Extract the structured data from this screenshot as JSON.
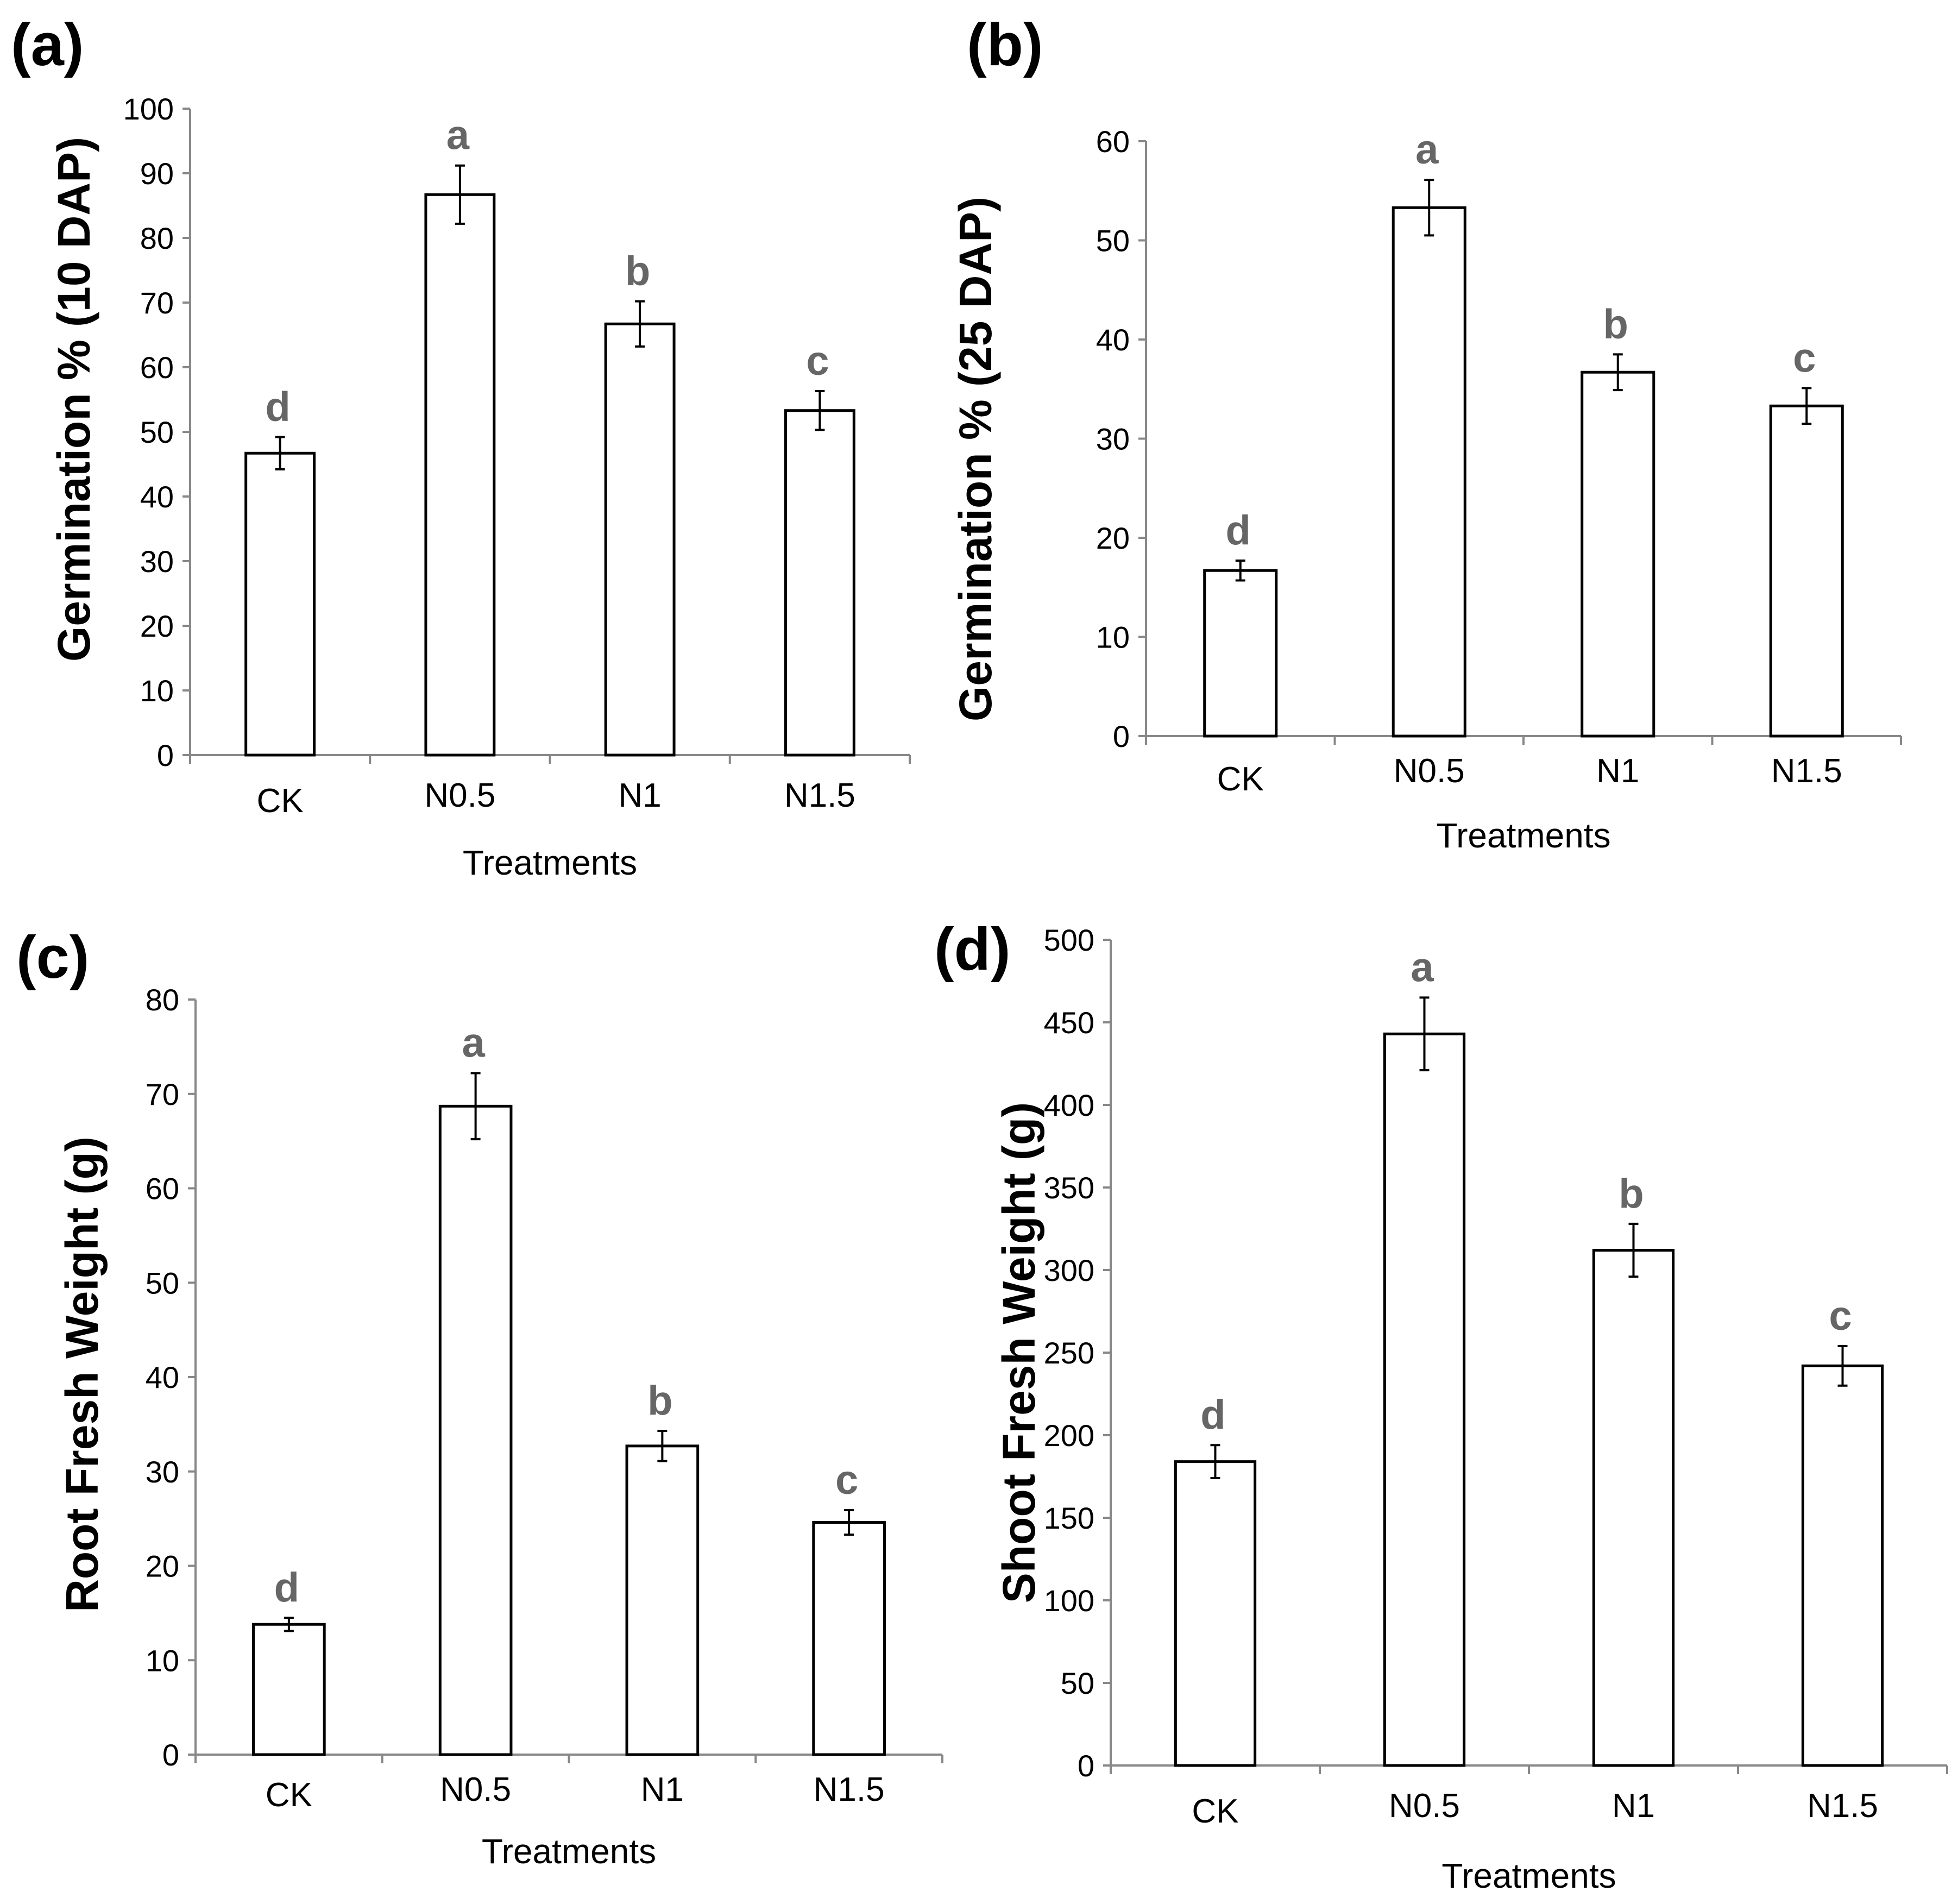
{
  "chart_data": [
    {
      "type": "bar",
      "panel": "(a)",
      "xlabel": "Treatments",
      "ylabel": "Germination % (10 DAP)",
      "categories": [
        "CK",
        "N0.5",
        "N1",
        "N1.5"
      ],
      "values": [
        46.7,
        86.7,
        66.7,
        53.3
      ],
      "errors": [
        2.5,
        4.5,
        3.5,
        3.0
      ],
      "significance": [
        "d",
        "a",
        "b",
        "c"
      ],
      "ylim": [
        0,
        100
      ],
      "yticks": [
        0,
        10,
        20,
        30,
        40,
        50,
        60,
        70,
        80,
        90,
        100
      ],
      "legend": "none",
      "grid": false
    },
    {
      "type": "bar",
      "panel": "(b)",
      "xlabel": "Treatments",
      "ylabel": "Germination % (25 DAP)",
      "categories": [
        "CK",
        "N0.5",
        "N1",
        "N1.5"
      ],
      "values": [
        16.7,
        53.3,
        36.7,
        33.3
      ],
      "errors": [
        1.0,
        2.8,
        1.8,
        1.8
      ],
      "significance": [
        "d",
        "a",
        "b",
        "c"
      ],
      "ylim": [
        0,
        60
      ],
      "yticks": [
        0,
        10,
        20,
        30,
        40,
        50,
        60
      ],
      "legend": "none",
      "grid": false
    },
    {
      "type": "bar",
      "panel": "(c)",
      "xlabel": "Treatments",
      "ylabel": "Root Fresh Weight (g)",
      "categories": [
        "CK",
        "N0.5",
        "N1",
        "N1.5"
      ],
      "values": [
        13.8,
        68.7,
        32.7,
        24.6
      ],
      "errors": [
        0.7,
        3.5,
        1.6,
        1.3
      ],
      "significance": [
        "d",
        "a",
        "b",
        "c"
      ],
      "ylim": [
        0,
        80
      ],
      "yticks": [
        0,
        10,
        20,
        30,
        40,
        50,
        60,
        70,
        80
      ],
      "legend": "none",
      "grid": false
    },
    {
      "type": "bar",
      "panel": "(d)",
      "xlabel": "Treatments",
      "ylabel": "Shoot Fresh Weight (g)",
      "categories": [
        "CK",
        "N0.5",
        "N1",
        "N1.5"
      ],
      "values": [
        184,
        443,
        312,
        242
      ],
      "errors": [
        10,
        22,
        16,
        12
      ],
      "significance": [
        "d",
        "a",
        "b",
        "c"
      ],
      "ylim": [
        0,
        500
      ],
      "yticks": [
        0,
        50,
        100,
        150,
        200,
        250,
        300,
        350,
        400,
        450,
        500
      ],
      "legend": "none",
      "grid": false
    }
  ]
}
